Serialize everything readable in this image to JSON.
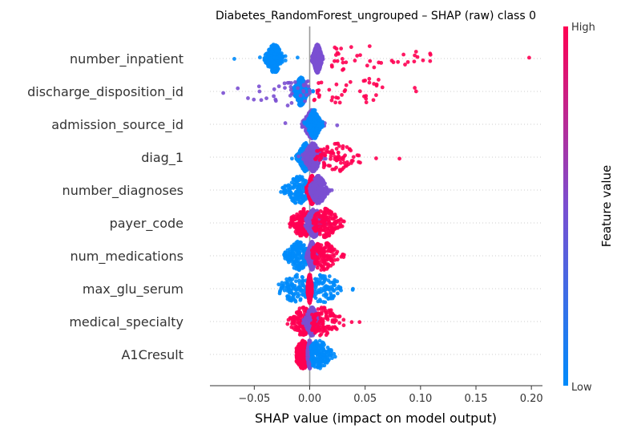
{
  "chart_data": {
    "type": "scatter",
    "title": "Diabetes_RandomForest_ungrouped – SHAP (raw) class 0",
    "xlabel": "SHAP value (impact on model output)",
    "ylabel": "",
    "xlim": [
      -0.09,
      0.21
    ],
    "x_ticks": [
      -0.05,
      0.0,
      0.05,
      0.1,
      0.15,
      0.2
    ],
    "x_tick_labels": [
      "−0.05",
      "0.00",
      "0.05",
      "0.10",
      "0.15",
      "0.20"
    ],
    "grid": "horizontal-dotted",
    "colorbar": {
      "title": "Feature value",
      "high_label": "High",
      "low_label": "Low",
      "high_color": "#ff0052",
      "mid_color": "#7a4fd1",
      "low_color": "#008bfb",
      "placement": "right"
    },
    "features": [
      {
        "name": "number_inpatient",
        "clusters": [
          {
            "center": -0.032,
            "spread": 0.004,
            "min": -0.068,
            "max": -0.006,
            "color": "low"
          },
          {
            "center": 0.007,
            "spread": 0.002,
            "min": 0.002,
            "max": 0.012,
            "color": "mid"
          },
          {
            "center": 0.05,
            "spread": 0.035,
            "min": 0.02,
            "max": 0.198,
            "color": "high"
          }
        ]
      },
      {
        "name": "discharge_disposition_id",
        "clusters": [
          {
            "center": -0.008,
            "spread": 0.003,
            "min": -0.015,
            "max": 0.003,
            "color": "low"
          },
          {
            "center": -0.02,
            "spread": 0.03,
            "min": -0.078,
            "max": 0.0,
            "color": "mid"
          },
          {
            "center": 0.04,
            "spread": 0.03,
            "min": 0.004,
            "max": 0.096,
            "color": "high"
          }
        ]
      },
      {
        "name": "admission_source_id",
        "clusters": [
          {
            "center": 0.002,
            "spread": 0.004,
            "min": -0.022,
            "max": 0.026,
            "color": "mid"
          },
          {
            "center": 0.004,
            "spread": 0.003,
            "min": -0.005,
            "max": 0.012,
            "color": "low"
          }
        ]
      },
      {
        "name": "diag_1",
        "clusters": [
          {
            "center": -0.004,
            "spread": 0.003,
            "min": -0.016,
            "max": 0.006,
            "color": "low"
          },
          {
            "center": 0.003,
            "spread": 0.004,
            "min": -0.01,
            "max": 0.015,
            "color": "mid"
          },
          {
            "center": 0.025,
            "spread": 0.012,
            "min": 0.005,
            "max": 0.081,
            "color": "high"
          }
        ]
      },
      {
        "name": "number_diagnoses",
        "clusters": [
          {
            "center": -0.01,
            "spread": 0.006,
            "min": -0.026,
            "max": 0.0,
            "color": "low"
          },
          {
            "center": 0.002,
            "spread": 0.002,
            "min": -0.003,
            "max": 0.006,
            "color": "high"
          },
          {
            "center": 0.008,
            "spread": 0.004,
            "min": 0.0,
            "max": 0.02,
            "color": "mid"
          }
        ]
      },
      {
        "name": "payer_code",
        "clusters": [
          {
            "center": -0.006,
            "spread": 0.006,
            "min": -0.018,
            "max": 0.0,
            "color": "high"
          },
          {
            "center": 0.004,
            "spread": 0.004,
            "min": -0.004,
            "max": 0.015,
            "color": "mid"
          },
          {
            "center": 0.014,
            "spread": 0.007,
            "min": 0.003,
            "max": 0.031,
            "color": "high"
          }
        ]
      },
      {
        "name": "num_medications",
        "clusters": [
          {
            "center": -0.01,
            "spread": 0.006,
            "min": -0.023,
            "max": 0.0,
            "color": "low"
          },
          {
            "center": 0.002,
            "spread": 0.002,
            "min": -0.003,
            "max": 0.007,
            "color": "mid"
          },
          {
            "center": 0.012,
            "spread": 0.007,
            "min": 0.002,
            "max": 0.031,
            "color": "high"
          }
        ]
      },
      {
        "name": "max_glu_serum",
        "clusters": [
          {
            "center": -0.012,
            "spread": 0.008,
            "min": -0.028,
            "max": 0.0,
            "color": "low"
          },
          {
            "center": 0.012,
            "spread": 0.009,
            "min": 0.0,
            "max": 0.039,
            "color": "low"
          },
          {
            "center": 0.0,
            "spread": 0.001,
            "min": -0.002,
            "max": 0.002,
            "color": "high"
          }
        ]
      },
      {
        "name": "medical_specialty",
        "clusters": [
          {
            "center": -0.006,
            "spread": 0.006,
            "min": -0.02,
            "max": 0.0,
            "color": "high"
          },
          {
            "center": 0.002,
            "spread": 0.003,
            "min": -0.006,
            "max": 0.012,
            "color": "mid"
          },
          {
            "center": 0.012,
            "spread": 0.009,
            "min": 0.002,
            "max": 0.045,
            "color": "high"
          }
        ]
      },
      {
        "name": "A1Cresult",
        "clusters": [
          {
            "center": -0.006,
            "spread": 0.004,
            "min": -0.012,
            "max": 0.0,
            "color": "high"
          },
          {
            "center": 0.0,
            "spread": 0.001,
            "min": -0.002,
            "max": 0.002,
            "color": "mid"
          },
          {
            "center": 0.008,
            "spread": 0.006,
            "min": 0.001,
            "max": 0.023,
            "color": "low"
          }
        ]
      }
    ]
  }
}
